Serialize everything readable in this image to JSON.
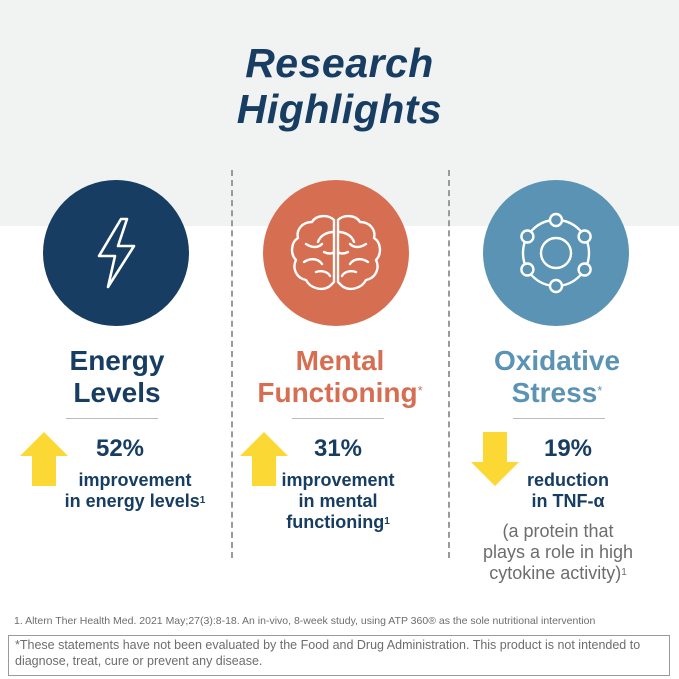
{
  "title_line1": "Research",
  "title_line2": "Highlights",
  "colors": {
    "navy": "#173d63",
    "orange": "#d66e52",
    "steel": "#5a93b3",
    "yellow": "#fcd835"
  },
  "columns": [
    {
      "icon": "lightning-bolt-icon",
      "heading_line1": "Energy",
      "heading_line2": "Levels",
      "direction": "up",
      "percent": "52%",
      "desc_line1": "improvement",
      "desc_line2": "in energy levels",
      "desc_ref": "1"
    },
    {
      "icon": "brain-icon",
      "heading_line1": "Mental",
      "heading_line2": "Functioning",
      "heading_mark": "*",
      "direction": "up",
      "percent": "31%",
      "desc_line1": "improvement",
      "desc_line2": "in mental",
      "desc_line3": "functioning",
      "desc_ref": "1"
    },
    {
      "icon": "molecule-icon",
      "heading_line1": "Oxidative",
      "heading_line2": "Stress",
      "heading_mark": "*",
      "direction": "down",
      "percent": "19%",
      "desc_line1": "reduction",
      "desc_line2": "in TNF-α",
      "note_line1": "(a protein that",
      "note_line2": "plays a role in high",
      "note_line3": "cytokine activity)",
      "note_ref": "1"
    }
  ],
  "footnote": "1. Altern Ther Health Med. 2021 May;27(3):8-18. An in-vivo, 8-week study, using ATP 360® as the sole nutritional intervention",
  "disclaimer": "*These statements have not been evaluated by the Food and Drug Administration. This product is not intended to diagnose, treat, cure or prevent any disease."
}
